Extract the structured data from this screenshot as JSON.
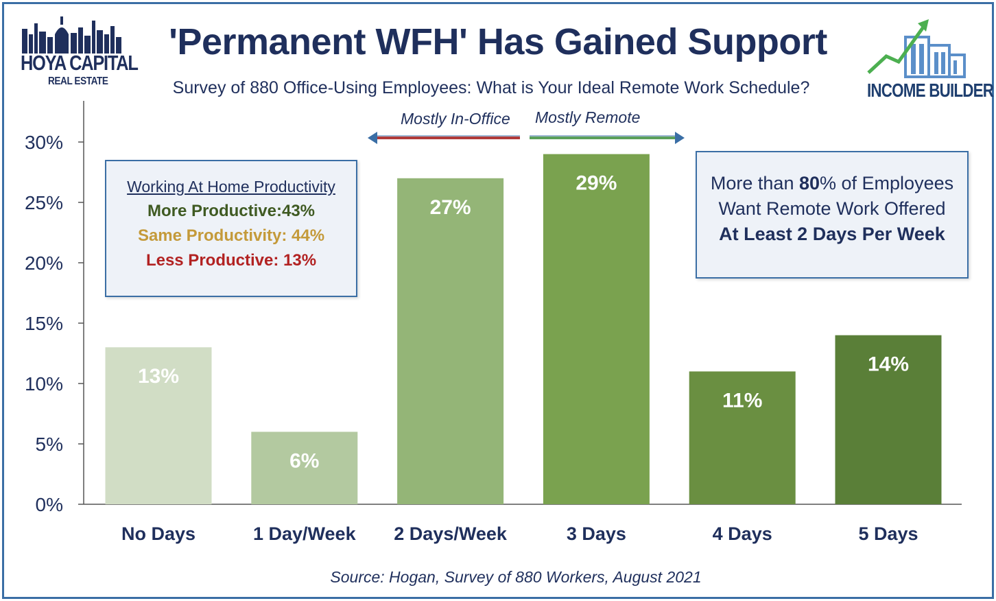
{
  "header": {
    "title": "'Permanent WFH' Has Gained Support",
    "subtitle": "Survey of 880 Office-Using Employees: What is Your Ideal Remote Work Schedule?"
  },
  "logos": {
    "left_main": "HOYA CAPITAL",
    "left_sub": "REAL ESTATE",
    "right": "INCOME BUILDER"
  },
  "arrows": {
    "left_label": "Mostly In-Office",
    "right_label": "Mostly Remote",
    "left_color": "#b03a3a",
    "right_color": "#5aa05a"
  },
  "productivity_box": {
    "header": "Working At Home Productivity",
    "more": "More Productive:43%",
    "same": "Same Productivity: 44%",
    "less": "Less Productive: 13%",
    "more_color": "#3f5a22",
    "same_color": "#c49a3a",
    "less_color": "#b22222"
  },
  "callout_box": {
    "line1_pre": "More than ",
    "line1_bold": "80",
    "line1_post": "% of Employees",
    "line2": "Want Remote Work Offered",
    "line3": "At Least 2 Days Per Week"
  },
  "source": "Source: Hogan, Survey of 880 Workers, August 2021",
  "chart_data": {
    "type": "bar",
    "categories": [
      "No Days",
      "1 Day/Week",
      "2 Days/Week",
      "3 Days",
      "4 Days",
      "5 Days"
    ],
    "values": [
      13,
      6,
      27,
      29,
      11,
      14
    ],
    "data_labels": [
      "13%",
      "6%",
      "27%",
      "29%",
      "11%",
      "14%"
    ],
    "bar_colors": [
      "#d1ddc5",
      "#b3c9a0",
      "#94b577",
      "#7aa24f",
      "#6a8f41",
      "#5a7f38"
    ],
    "ylim": [
      0,
      30
    ],
    "yticks": [
      0,
      5,
      10,
      15,
      20,
      25,
      30
    ],
    "ytick_labels": [
      "0%",
      "5%",
      "10%",
      "15%",
      "20%",
      "25%",
      "30%"
    ],
    "grid": false,
    "legend": "none"
  }
}
